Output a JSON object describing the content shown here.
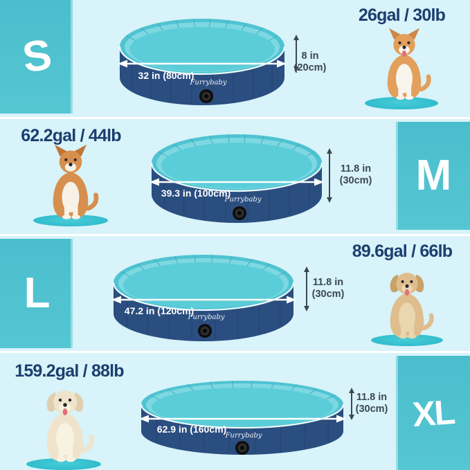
{
  "brand": "Furrybaby",
  "colors": {
    "background": "#d8f3f9",
    "size_block_teal": "#4ec2d0",
    "capacity_text": "#1c3e6e",
    "pool_wall_navy": "#2b4e80",
    "pool_rim_teal": "#4fc3d2",
    "pool_floor_teal": "#5bcdd9",
    "dimension_text": "#3b4752",
    "dog_mat_teal": "#38c4d2",
    "letter_white": "#ffffff"
  },
  "rows": [
    {
      "size_label": "S",
      "size_position": "left",
      "capacity": "26gal / 30lb",
      "diameter_label": "32 in (80cm)",
      "height_label": "8 in",
      "height_label_metric": "(20cm)",
      "dog": "corgi"
    },
    {
      "size_label": "M",
      "size_position": "right",
      "capacity": "62.2gal / 44lb",
      "diameter_label": "39.3 in (100cm)",
      "height_label": "11.8 in",
      "height_label_metric": "(30cm)",
      "dog": "shiba-inu"
    },
    {
      "size_label": "L",
      "size_position": "left",
      "capacity": "89.6gal / 66lb",
      "diameter_label": "47.2 in (120cm)",
      "height_label": "11.8 in",
      "height_label_metric": "(30cm)",
      "dog": "golden-retriever"
    },
    {
      "size_label": "XL",
      "size_position": "right",
      "capacity": "159.2gal / 88lb",
      "diameter_label": "62.9 in (160cm)",
      "height_label": "11.8 in",
      "height_label_metric": "(30cm)",
      "dog": "labrador"
    }
  ]
}
